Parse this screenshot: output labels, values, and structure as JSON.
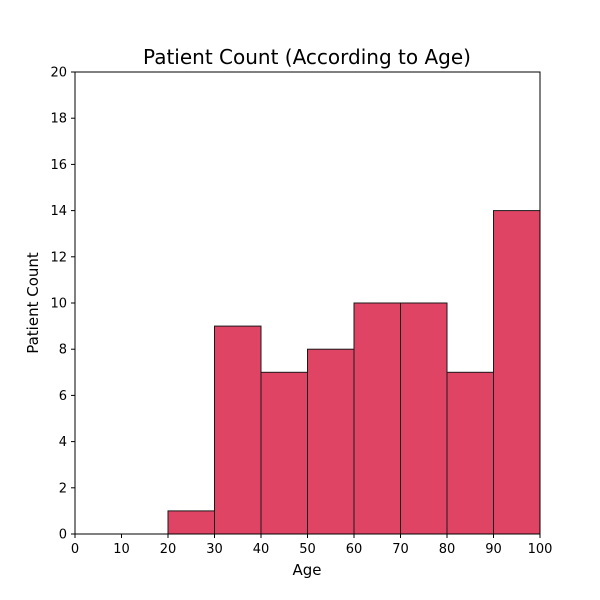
{
  "chart_data": {
    "type": "bar",
    "title": "Patient Count (According to Age)",
    "xlabel": "Age",
    "ylabel": "Patient Count",
    "xlim": [
      0,
      100
    ],
    "ylim": [
      0,
      20
    ],
    "bin_edges": [
      20,
      30,
      40,
      50,
      60,
      70,
      80,
      90,
      100
    ],
    "values": [
      1,
      9,
      7,
      8,
      10,
      10,
      7,
      14
    ],
    "x_ticks": [
      0,
      10,
      20,
      30,
      40,
      50,
      60,
      70,
      80,
      90,
      100
    ],
    "y_ticks": [
      0,
      2,
      4,
      6,
      8,
      10,
      12,
      14,
      16,
      18,
      20
    ],
    "bar_color": "#e04464",
    "edge_color": "#1a1a1a",
    "grid": false,
    "legend": "none"
  }
}
